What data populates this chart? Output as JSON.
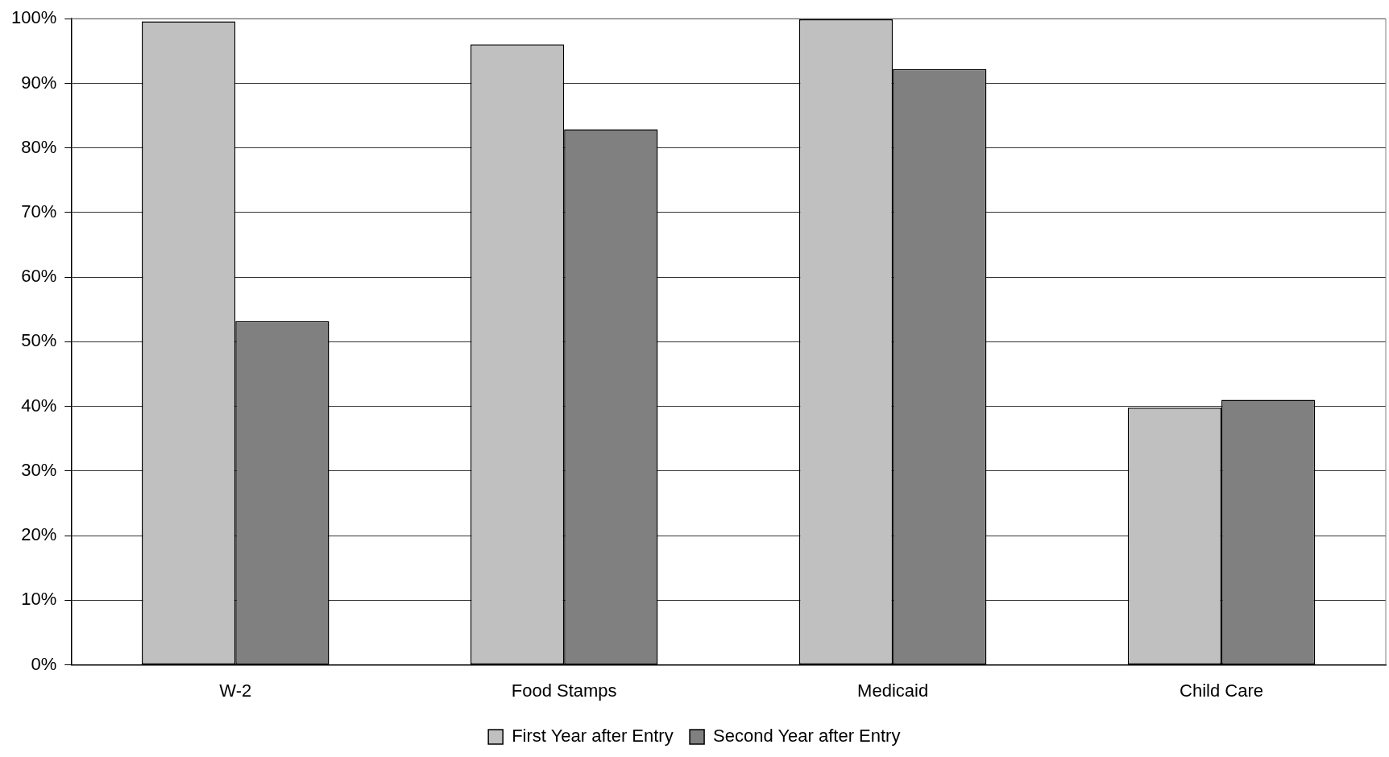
{
  "chart_data": {
    "type": "bar",
    "categories": [
      "W-2",
      "Food Stamps",
      "Medicaid",
      "Child Care"
    ],
    "series": [
      {
        "name": "First Year after Entry",
        "color": "#c0c0c0",
        "values": [
          99.6,
          96,
          99.9,
          39.8
        ]
      },
      {
        "name": "Second Year after Entry",
        "color": "#808080",
        "values": [
          53.2,
          82.9,
          92.2,
          41
        ]
      }
    ],
    "ylim": [
      0,
      100
    ],
    "yticks": [
      {
        "value": 0,
        "label": "0%"
      },
      {
        "value": 10,
        "label": "10%"
      },
      {
        "value": 20,
        "label": "20%"
      },
      {
        "value": 30,
        "label": "30%"
      },
      {
        "value": 40,
        "label": "40%"
      },
      {
        "value": 50,
        "label": "50%"
      },
      {
        "value": 60,
        "label": "60%"
      },
      {
        "value": 70,
        "label": "70%"
      },
      {
        "value": 80,
        "label": "80%"
      },
      {
        "value": 90,
        "label": "90%"
      },
      {
        "value": 100,
        "label": "100%"
      }
    ],
    "grid": "y",
    "legend": "bottom"
  }
}
